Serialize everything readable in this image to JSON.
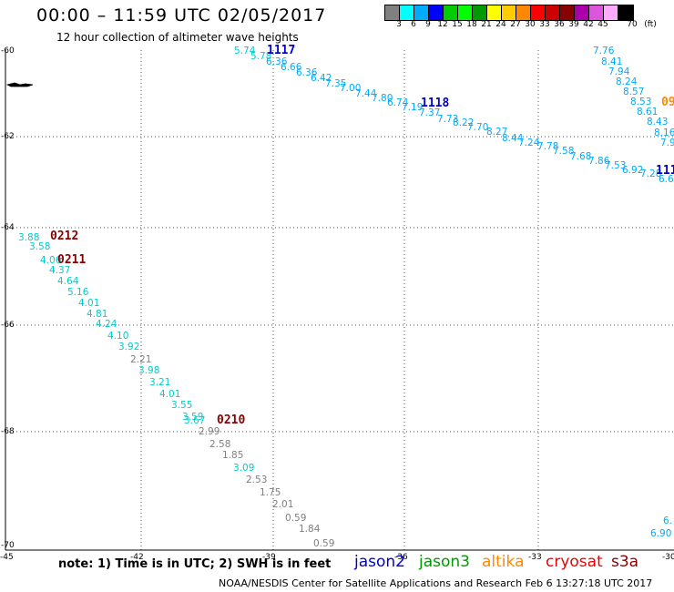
{
  "header": {
    "title": "00:00 – 11:59 UTC 02/05/2017",
    "subtitle": "12 hour collection of altimeter wave heights"
  },
  "legend": {
    "unit": "(ft)",
    "colors": [
      "#808080",
      "#00ffff",
      "#00aaff",
      "#0000ff",
      "#00cc00",
      "#00ff00",
      "#009900",
      "#ffff00",
      "#ffcc00",
      "#ff8800",
      "#ff0000",
      "#cc0000",
      "#880000",
      "#aa00aa",
      "#dd55dd",
      "#ffaaff",
      "#000000"
    ],
    "labels": [
      "3",
      "6",
      "9",
      "12",
      "15",
      "18",
      "21",
      "24",
      "27",
      "30",
      "33",
      "36",
      "39",
      "42",
      "45",
      "70"
    ]
  },
  "map": {
    "lat_ticks": [
      "-60",
      "-62",
      "-64",
      "-66",
      "-68",
      "-70"
    ],
    "lon_ticks": [
      "-45",
      "-42",
      "-39",
      "-36",
      "-33",
      "-30"
    ],
    "passes": [
      {
        "label": "1117",
        "color": "#0000cc"
      },
      {
        "label": "1118",
        "color": "#0000cc"
      },
      {
        "label": "0212",
        "color": "#880000"
      },
      {
        "label": "0211",
        "color": "#880000"
      },
      {
        "label": "0210",
        "color": "#880000"
      },
      {
        "label": "09",
        "color": "#ff8800"
      },
      {
        "label": "111",
        "color": "#0000cc"
      }
    ],
    "points": [
      {
        "t": "5.74",
        "c": "#00cccc"
      },
      {
        "t": "5.78",
        "c": "#00cccc"
      },
      {
        "t": "6.36",
        "c": "#00aaff"
      },
      {
        "t": "6.66",
        "c": "#00aaff"
      },
      {
        "t": "6.36",
        "c": "#00aaff"
      },
      {
        "t": "6.42",
        "c": "#00aaff"
      },
      {
        "t": "7.35",
        "c": "#00aaff"
      },
      {
        "t": "7.00",
        "c": "#00aaff"
      },
      {
        "t": "7.44",
        "c": "#00aaff"
      },
      {
        "t": "7.80",
        "c": "#00aaff"
      },
      {
        "t": "6.74",
        "c": "#00aaff"
      },
      {
        "t": "7.19",
        "c": "#00aaff"
      },
      {
        "t": "7.37",
        "c": "#00aaff"
      },
      {
        "t": "7.73",
        "c": "#00aaff"
      },
      {
        "t": "8.22",
        "c": "#00aaff"
      },
      {
        "t": "7.70",
        "c": "#00aaff"
      },
      {
        "t": "8.27",
        "c": "#00aaff"
      },
      {
        "t": "8.44",
        "c": "#00aaff"
      },
      {
        "t": "7.24",
        "c": "#00aaff"
      },
      {
        "t": "7.78",
        "c": "#00aaff"
      },
      {
        "t": "7.58",
        "c": "#00aaff"
      },
      {
        "t": "7.68",
        "c": "#00aaff"
      },
      {
        "t": "7.86",
        "c": "#00aaff"
      },
      {
        "t": "7.53",
        "c": "#00aaff"
      },
      {
        "t": "6.92",
        "c": "#00aaff"
      },
      {
        "t": "7.28",
        "c": "#00aaff"
      },
      {
        "t": "6.6",
        "c": "#00aaff"
      },
      {
        "t": "7.76",
        "c": "#00aaff"
      },
      {
        "t": "8.41",
        "c": "#00aaff"
      },
      {
        "t": "7.94",
        "c": "#00aaff"
      },
      {
        "t": "8.24",
        "c": "#00aaff"
      },
      {
        "t": "8.57",
        "c": "#00aaff"
      },
      {
        "t": "8.53",
        "c": "#00aaff"
      },
      {
        "t": "8.61",
        "c": "#00aaff"
      },
      {
        "t": "8.43",
        "c": "#00aaff"
      },
      {
        "t": "8.16",
        "c": "#00aaff"
      },
      {
        "t": "7.9",
        "c": "#00aaff"
      },
      {
        "t": "3.88",
        "c": "#00cccc"
      },
      {
        "t": "3.58",
        "c": "#00cccc"
      },
      {
        "t": "4.06",
        "c": "#00cccc"
      },
      {
        "t": "4.37",
        "c": "#00cccc"
      },
      {
        "t": "4.64",
        "c": "#00cccc"
      },
      {
        "t": "5.16",
        "c": "#00cccc"
      },
      {
        "t": "4.01",
        "c": "#00cccc"
      },
      {
        "t": "4.81",
        "c": "#00cccc"
      },
      {
        "t": "4.24",
        "c": "#00cccc"
      },
      {
        "t": "4.10",
        "c": "#00cccc"
      },
      {
        "t": "3.92",
        "c": "#00cccc"
      },
      {
        "t": "2.21",
        "c": "#808080"
      },
      {
        "t": "3.98",
        "c": "#00cccc"
      },
      {
        "t": "3.21",
        "c": "#00cccc"
      },
      {
        "t": "4.01",
        "c": "#00cccc"
      },
      {
        "t": "3.55",
        "c": "#00cccc"
      },
      {
        "t": "3.59",
        "c": "#00cccc"
      },
      {
        "t": "3.67",
        "c": "#00cccc"
      },
      {
        "t": "2.99",
        "c": "#808080"
      },
      {
        "t": "2.58",
        "c": "#808080"
      },
      {
        "t": "1.85",
        "c": "#808080"
      },
      {
        "t": "3.09",
        "c": "#00cccc"
      },
      {
        "t": "2.53",
        "c": "#808080"
      },
      {
        "t": "1.75",
        "c": "#808080"
      },
      {
        "t": "2.01",
        "c": "#808080"
      },
      {
        "t": "0.59",
        "c": "#808080"
      },
      {
        "t": "1.84",
        "c": "#808080"
      },
      {
        "t": "0.59",
        "c": "#808080"
      },
      {
        "t": "6.",
        "c": "#00aaff"
      },
      {
        "t": "6.90",
        "c": "#00aaff"
      }
    ]
  },
  "note": "note: 1) Time is in UTC; 2) SWH is in feet",
  "satellites": [
    {
      "name": "jason2",
      "color": "#0000cc"
    },
    {
      "name": "jason3",
      "color": "#009900"
    },
    {
      "name": "altika",
      "color": "#ff8800"
    },
    {
      "name": "cryosat",
      "color": "#ee0000"
    },
    {
      "name": "s3a",
      "color": "#880000"
    }
  ],
  "footer": "NOAA/NESDIS Center for Satellite Applications and Research    Feb  6 13:27:18 UTC 2017"
}
